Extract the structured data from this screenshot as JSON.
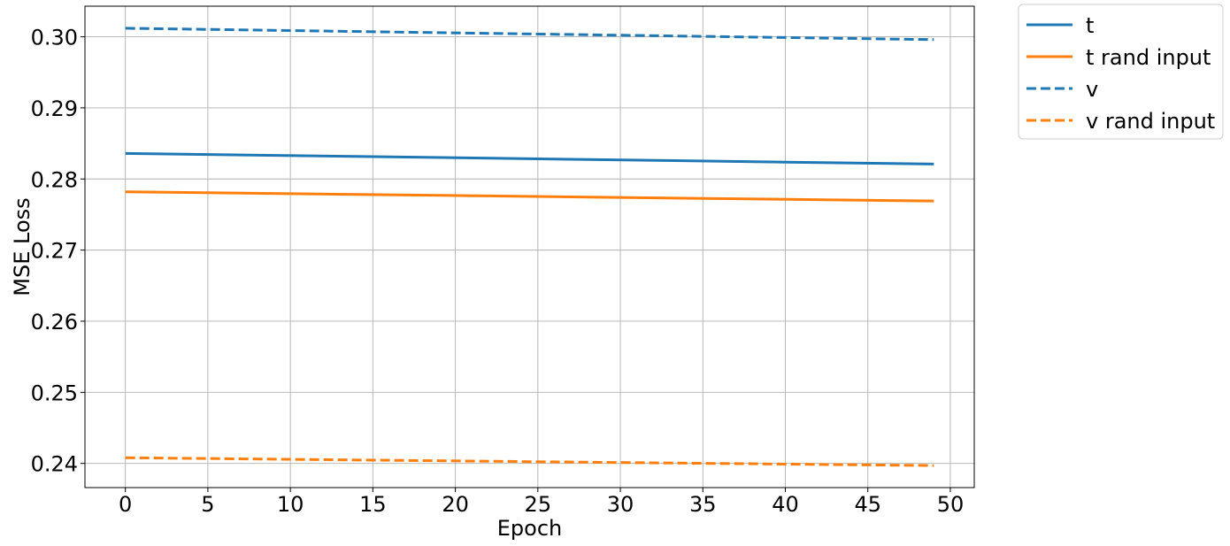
{
  "chart_data": {
    "type": "line",
    "title": "",
    "xlabel": "Epoch",
    "ylabel": "MSE Loss",
    "xlim": [
      -2.45,
      51.45
    ],
    "ylim": [
      0.2366,
      0.3043
    ],
    "xticks": [
      0,
      5,
      10,
      15,
      20,
      25,
      30,
      35,
      40,
      45,
      50
    ],
    "yticks": [
      0.24,
      0.25,
      0.26,
      0.27,
      0.28,
      0.29,
      0.3
    ],
    "ytick_labels": [
      "0.24",
      "0.25",
      "0.26",
      "0.27",
      "0.28",
      "0.29",
      "0.30"
    ],
    "xtick_labels": [
      "0",
      "5",
      "10",
      "15",
      "20",
      "25",
      "30",
      "35",
      "40",
      "45",
      "50"
    ],
    "grid": true,
    "legend_position": "outside-top-right",
    "series": [
      {
        "name": "t",
        "color": "#1f77b4",
        "dash": "solid",
        "x_start": 0,
        "x_end": 49,
        "y_start": 0.2836,
        "y_end": 0.2821
      },
      {
        "name": "t rand input",
        "color": "#ff7f0e",
        "dash": "solid",
        "x_start": 0,
        "x_end": 49,
        "y_start": 0.2782,
        "y_end": 0.2769
      },
      {
        "name": "v",
        "color": "#1f77b4",
        "dash": "dashed",
        "x_start": 0,
        "x_end": 49,
        "y_start": 0.3012,
        "y_end": 0.2996
      },
      {
        "name": "v rand input",
        "color": "#ff7f0e",
        "dash": "dashed",
        "x_start": 0,
        "x_end": 49,
        "y_start": 0.2408,
        "y_end": 0.2397
      }
    ]
  }
}
